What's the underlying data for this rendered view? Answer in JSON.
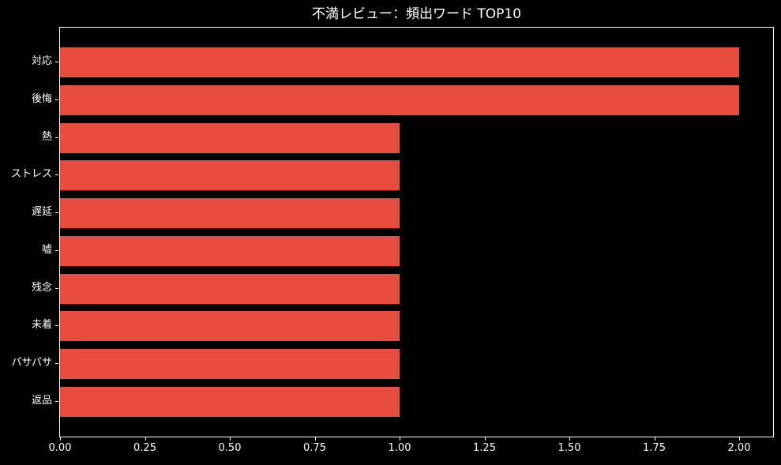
{
  "chart_data": {
    "type": "bar",
    "orientation": "horizontal",
    "title": "不満レビュー：頻出ワード TOP10",
    "categories": [
      "対応",
      "後悔",
      "熱",
      "ストレス",
      "遅延",
      "嘘",
      "残念",
      "未着",
      "パサパサ",
      "返品"
    ],
    "values": [
      2,
      2,
      1,
      1,
      1,
      1,
      1,
      1,
      1,
      1
    ],
    "xlabel": "",
    "ylabel": "",
    "xlim": [
      0,
      2.1
    ],
    "x_tick_values": [
      0,
      0.25,
      0.5,
      0.75,
      1.0,
      1.25,
      1.5,
      1.75,
      2.0
    ],
    "x_tick_labels": [
      "0.00",
      "0.25",
      "0.50",
      "0.75",
      "1.00",
      "1.25",
      "1.50",
      "1.75",
      "2.00"
    ],
    "grid": false,
    "legend": "none",
    "colors": {
      "bar": "#e74c3c",
      "background": "#000000",
      "text": "#ffffff",
      "spine": "#ffffff"
    }
  }
}
